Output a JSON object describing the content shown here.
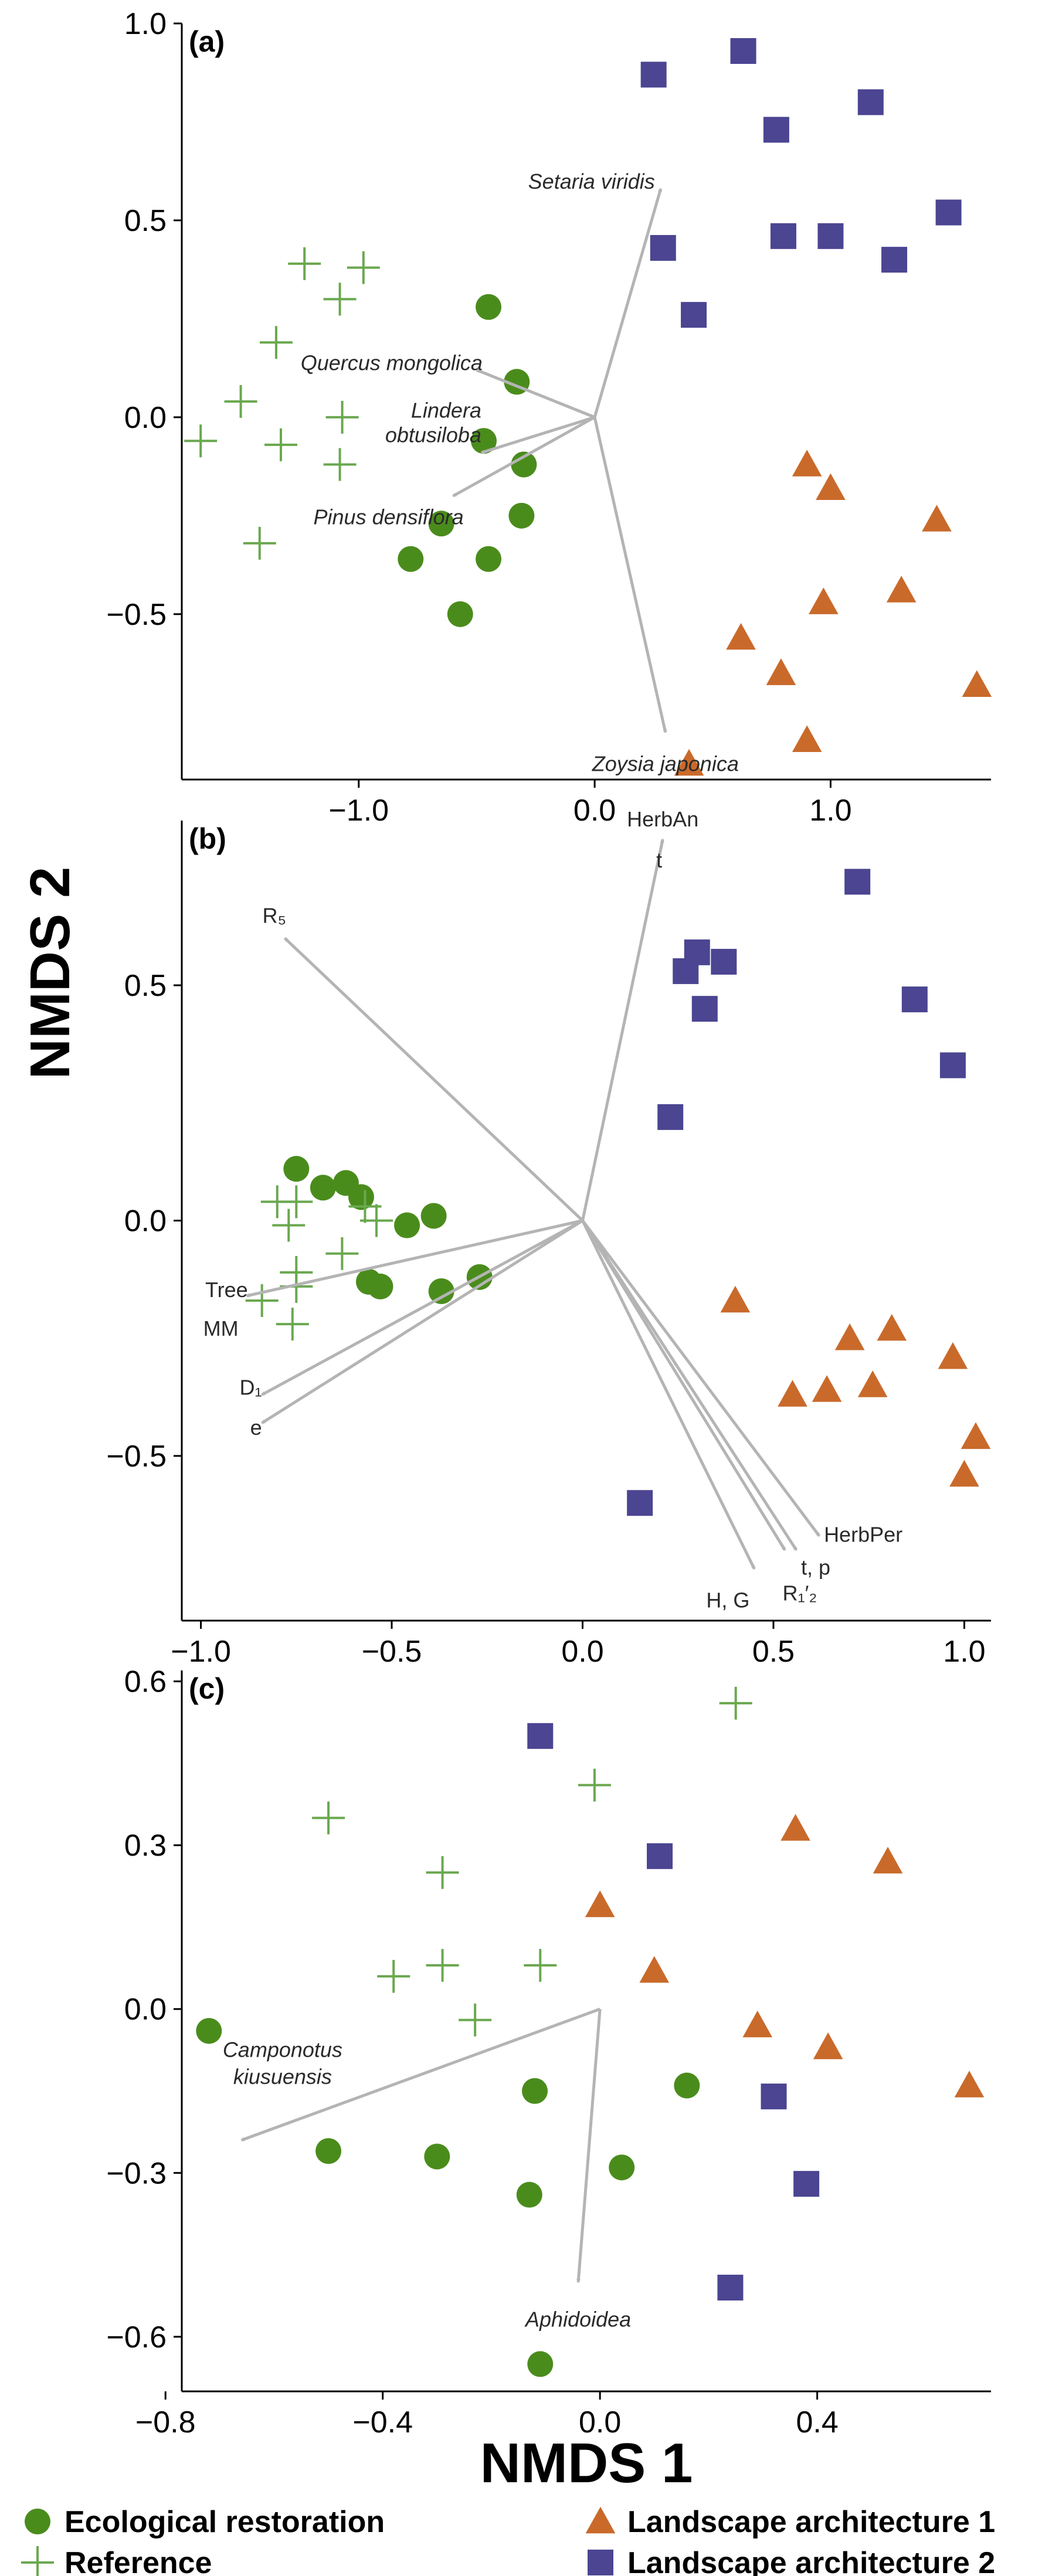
{
  "colors": {
    "ecological_restoration": "#4a8c1c",
    "reference": "#6aa84f",
    "landscape_architecture_1": "#c96a2b",
    "landscape_architecture_2": "#4b4592",
    "vector": "#b4b4b4"
  },
  "axis_titles": {
    "x": "NMDS 1",
    "y": "NMDS 2"
  },
  "legend": [
    {
      "key": "ecological_restoration",
      "label": "Ecological restoration",
      "marker": "circle"
    },
    {
      "key": "landscape_architecture_1",
      "label": "Landscape architecture 1",
      "marker": "triangle"
    },
    {
      "key": "reference",
      "label": "Reference",
      "marker": "plus"
    },
    {
      "key": "landscape_architecture_2",
      "label": "Landscape architecture 2",
      "marker": "square"
    }
  ],
  "chart_data": [
    {
      "type": "scatter",
      "panel_label": "(a)",
      "xlim": [
        -1.75,
        1.68
      ],
      "ylim": [
        -0.92,
        1.0
      ],
      "xticks": [
        -1.0,
        0.0,
        1.0
      ],
      "xtick_labels": [
        "−1.0",
        "0.0",
        "1.0"
      ],
      "yticks": [
        -0.5,
        0.0,
        0.5,
        1.0
      ],
      "ytick_labels": [
        "−0.5",
        "0.0",
        "0.5",
        "1.0"
      ],
      "series": [
        {
          "name": "Ecological restoration",
          "key": "ecological_restoration",
          "marker": "circle",
          "points": [
            [
              -0.45,
              0.28
            ],
            [
              -0.33,
              0.09
            ],
            [
              -0.47,
              -0.06
            ],
            [
              -0.3,
              -0.12
            ],
            [
              -0.65,
              -0.27
            ],
            [
              -0.31,
              -0.25
            ],
            [
              -0.78,
              -0.36
            ],
            [
              -0.45,
              -0.36
            ],
            [
              -0.57,
              -0.5
            ]
          ]
        },
        {
          "name": "Reference",
          "key": "reference",
          "marker": "plus",
          "points": [
            [
              -1.23,
              0.39
            ],
            [
              -0.98,
              0.38
            ],
            [
              -1.08,
              0.3
            ],
            [
              -1.35,
              0.19
            ],
            [
              -1.5,
              0.04
            ],
            [
              -1.07,
              0.0
            ],
            [
              -1.67,
              -0.06
            ],
            [
              -1.33,
              -0.07
            ],
            [
              -1.08,
              -0.12
            ],
            [
              -1.42,
              -0.32
            ]
          ]
        },
        {
          "name": "Landscape architecture 1",
          "key": "landscape_architecture_1",
          "marker": "triangle",
          "points": [
            [
              0.9,
              -0.12
            ],
            [
              1.0,
              -0.18
            ],
            [
              1.45,
              -0.26
            ],
            [
              1.3,
              -0.44
            ],
            [
              0.97,
              -0.47
            ],
            [
              0.62,
              -0.56
            ],
            [
              0.79,
              -0.65
            ],
            [
              1.62,
              -0.68
            ],
            [
              0.9,
              -0.82
            ],
            [
              0.4,
              -0.88
            ]
          ]
        },
        {
          "name": "Landscape architecture 2",
          "key": "landscape_architecture_2",
          "marker": "square",
          "points": [
            [
              0.25,
              0.87
            ],
            [
              0.63,
              0.93
            ],
            [
              0.77,
              0.73
            ],
            [
              1.17,
              0.8
            ],
            [
              1.5,
              0.52
            ],
            [
              0.29,
              0.43
            ],
            [
              0.8,
              0.46
            ],
            [
              1.0,
              0.46
            ],
            [
              1.27,
              0.4
            ],
            [
              0.42,
              0.26
            ]
          ]
        }
      ],
      "vectors": [
        {
          "label": "Setaria viridis",
          "italic": true,
          "x": 0.28,
          "y": 0.58,
          "anchor": "end",
          "dx": -10,
          "dy": 0
        },
        {
          "label": "Quercus mongolica",
          "italic": true,
          "x": -0.5,
          "y": 0.12,
          "anchor": "end",
          "dx": 10,
          "dy": 0
        },
        {
          "label": "Lindera",
          "italic": true,
          "x": -0.48,
          "y": -0.09,
          "anchor": "end",
          "dx": 0,
          "dy": -60
        },
        {
          "label": "obtusiloba",
          "italic": true,
          "x": -0.48,
          "y": -0.09,
          "anchor": "end",
          "dx": 0,
          "dy": -18
        },
        {
          "label": "Pinus densiflora",
          "italic": true,
          "x": -0.6,
          "y": -0.2,
          "anchor": "end",
          "dx": 18,
          "dy": 48
        },
        {
          "label": "Zoysia japonica",
          "italic": true,
          "x": 0.3,
          "y": -0.8,
          "anchor": "middle",
          "dx": 0,
          "dy": 66
        }
      ]
    },
    {
      "type": "scatter",
      "panel_label": "(b)",
      "xlim": [
        -1.05,
        1.07
      ],
      "ylim": [
        -0.85,
        0.85
      ],
      "xticks": [
        -1.0,
        -0.5,
        0.0,
        0.5,
        1.0
      ],
      "xtick_labels": [
        "−1.0",
        "−0.5",
        "0.0",
        "0.5",
        "1.0"
      ],
      "yticks": [
        -0.5,
        0.0,
        0.5
      ],
      "ytick_labels": [
        "−0.5",
        "0.0",
        "0.5"
      ],
      "series": [
        {
          "name": "Ecological restoration",
          "key": "ecological_restoration",
          "marker": "circle",
          "points": [
            [
              -0.75,
              0.11
            ],
            [
              -0.68,
              0.07
            ],
            [
              -0.62,
              0.08
            ],
            [
              -0.58,
              0.05
            ],
            [
              -0.46,
              -0.01
            ],
            [
              -0.39,
              0.01
            ],
            [
              -0.56,
              -0.13
            ],
            [
              -0.53,
              -0.14
            ],
            [
              -0.37,
              -0.15
            ],
            [
              -0.27,
              -0.12
            ]
          ]
        },
        {
          "name": "Reference",
          "key": "reference",
          "marker": "plus",
          "points": [
            [
              -0.8,
              0.04
            ],
            [
              -0.75,
              0.04
            ],
            [
              -0.57,
              0.03
            ],
            [
              -0.54,
              0.0
            ],
            [
              -0.77,
              -0.01
            ],
            [
              -0.63,
              -0.07
            ],
            [
              -0.75,
              -0.11
            ],
            [
              -0.75,
              -0.14
            ],
            [
              -0.84,
              -0.17
            ],
            [
              -0.76,
              -0.22
            ]
          ]
        },
        {
          "name": "Landscape architecture 1",
          "key": "landscape_architecture_1",
          "marker": "triangle",
          "points": [
            [
              0.4,
              -0.17
            ],
            [
              0.7,
              -0.25
            ],
            [
              0.81,
              -0.23
            ],
            [
              0.97,
              -0.29
            ],
            [
              0.55,
              -0.37
            ],
            [
              0.64,
              -0.36
            ],
            [
              0.76,
              -0.35
            ],
            [
              1.03,
              -0.46
            ],
            [
              1.0,
              -0.54
            ]
          ]
        },
        {
          "name": "Landscape architecture 2",
          "key": "landscape_architecture_2",
          "marker": "square",
          "points": [
            [
              0.72,
              0.72
            ],
            [
              0.3,
              0.57
            ],
            [
              0.37,
              0.55
            ],
            [
              0.27,
              0.53
            ],
            [
              0.87,
              0.47
            ],
            [
              0.32,
              0.45
            ],
            [
              0.97,
              0.33
            ],
            [
              0.23,
              0.22
            ],
            [
              0.15,
              -0.6
            ]
          ]
        }
      ],
      "vectors": [
        {
          "label": "HerbAn",
          "italic": false,
          "x": 0.21,
          "y": 0.81,
          "anchor": "middle",
          "dx": 0,
          "dy": -22
        },
        {
          "label": "t",
          "italic": false,
          "x": 0.21,
          "y": 0.81,
          "anchor": "middle",
          "dx": -6,
          "dy": 48
        },
        {
          "label": "R₅",
          "italic": false,
          "x": -0.78,
          "y": 0.6,
          "anchor": "middle",
          "dx": -18,
          "dy": -26
        },
        {
          "label": "Tree",
          "italic": false,
          "x": -0.88,
          "y": -0.16,
          "anchor": "end",
          "dx": 2,
          "dy": 2
        },
        {
          "label": "MM",
          "italic": false,
          "x": -0.88,
          "y": -0.16,
          "anchor": "end",
          "dx": -14,
          "dy": 68
        },
        {
          "label": "D₁",
          "italic": false,
          "x": -0.84,
          "y": -0.37,
          "anchor": "end",
          "dx": 0,
          "dy": 0
        },
        {
          "label": "e",
          "italic": false,
          "x": -0.84,
          "y": -0.43,
          "anchor": "end",
          "dx": 0,
          "dy": 20
        },
        {
          "label": "HerbPer",
          "italic": false,
          "x": 0.62,
          "y": -0.67,
          "anchor": "start",
          "dx": 8,
          "dy": 10
        },
        {
          "label": "t, p",
          "italic": false,
          "x": 0.56,
          "y": -0.7,
          "anchor": "start",
          "dx": 8,
          "dy": 42
        },
        {
          "label": "R₁′₂",
          "italic": false,
          "x": 0.53,
          "y": -0.7,
          "anchor": "start",
          "dx": -4,
          "dy": 86
        },
        {
          "label": "H, G",
          "italic": false,
          "x": 0.45,
          "y": -0.74,
          "anchor": "end",
          "dx": -8,
          "dy": 66
        }
      ]
    },
    {
      "type": "scatter",
      "panel_label": "(c)",
      "xlim": [
        -0.77,
        0.72
      ],
      "ylim": [
        -0.7,
        0.62
      ],
      "xticks": [
        -0.8,
        -0.4,
        0.0,
        0.4
      ],
      "xtick_labels": [
        "−0.8",
        "−0.4",
        "0.0",
        "0.4"
      ],
      "yticks": [
        -0.6,
        -0.3,
        0.0,
        0.3,
        0.6
      ],
      "ytick_labels": [
        "−0.6",
        "−0.3",
        "0.0",
        "0.3",
        "0.6"
      ],
      "series": [
        {
          "name": "Ecological restoration",
          "key": "ecological_restoration",
          "marker": "circle",
          "points": [
            [
              -0.72,
              -0.04
            ],
            [
              -0.12,
              -0.15
            ],
            [
              0.16,
              -0.14
            ],
            [
              -0.5,
              -0.26
            ],
            [
              -0.3,
              -0.27
            ],
            [
              0.04,
              -0.29
            ],
            [
              -0.13,
              -0.34
            ],
            [
              -0.11,
              -0.65
            ]
          ]
        },
        {
          "name": "Reference",
          "key": "reference",
          "marker": "plus",
          "points": [
            [
              0.25,
              0.56
            ],
            [
              -0.01,
              0.41
            ],
            [
              -0.5,
              0.35
            ],
            [
              -0.29,
              0.25
            ],
            [
              -0.29,
              0.08
            ],
            [
              -0.11,
              0.08
            ],
            [
              -0.38,
              0.06
            ],
            [
              -0.23,
              -0.02
            ]
          ]
        },
        {
          "name": "Landscape architecture 1",
          "key": "landscape_architecture_1",
          "marker": "triangle",
          "points": [
            [
              0.36,
              0.33
            ],
            [
              0.53,
              0.27
            ],
            [
              0.0,
              0.19
            ],
            [
              0.1,
              0.07
            ],
            [
              0.29,
              -0.03
            ],
            [
              0.42,
              -0.07
            ],
            [
              0.68,
              -0.14
            ]
          ]
        },
        {
          "name": "Landscape architecture 2",
          "key": "landscape_architecture_2",
          "marker": "square",
          "points": [
            [
              -0.11,
              0.5
            ],
            [
              0.11,
              0.28
            ],
            [
              0.32,
              -0.16
            ],
            [
              0.38,
              -0.32
            ],
            [
              0.24,
              -0.51
            ]
          ]
        }
      ],
      "vectors": [
        {
          "label": "Camponotus",
          "italic": true,
          "x": -0.66,
          "y": -0.24,
          "anchor": "middle",
          "dx": 70,
          "dy": -142
        },
        {
          "label": "kiusuensis",
          "italic": true,
          "x": -0.66,
          "y": -0.24,
          "anchor": "middle",
          "dx": 70,
          "dy": -96
        },
        {
          "label": "Aphidoidea",
          "italic": true,
          "x": -0.04,
          "y": -0.5,
          "anchor": "middle",
          "dx": 0,
          "dy": 76
        }
      ]
    }
  ]
}
